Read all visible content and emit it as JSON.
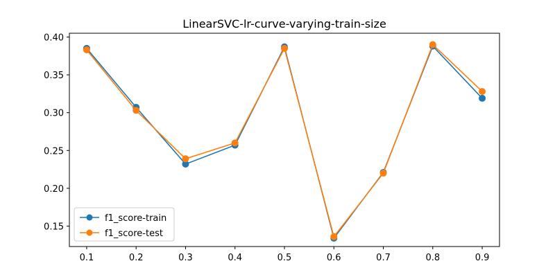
{
  "chart_data": {
    "type": "line",
    "title": "LinearSVC-lr-curve-varying-train-size",
    "xlabel": "",
    "ylabel": "",
    "x": [
      0.1,
      0.2,
      0.3,
      0.4,
      0.5,
      0.6,
      0.7,
      0.8,
      0.9
    ],
    "x_ticks": [
      "0.1",
      "0.2",
      "0.3",
      "0.4",
      "0.5",
      "0.6",
      "0.7",
      "0.8",
      "0.9"
    ],
    "y_ticks": [
      "0.15",
      "0.20",
      "0.25",
      "0.30",
      "0.35",
      "0.40"
    ],
    "xlim": [
      0.065,
      0.935
    ],
    "ylim": [
      0.123,
      0.405
    ],
    "grid": false,
    "legend_position": "lower-left",
    "series": [
      {
        "name": "f1_score-train",
        "color": "#1f77b4",
        "values": [
          0.385,
          0.307,
          0.232,
          0.257,
          0.387,
          0.134,
          0.221,
          0.388,
          0.319
        ]
      },
      {
        "name": "f1_score-test",
        "color": "#ff7f0e",
        "values": [
          0.383,
          0.303,
          0.239,
          0.26,
          0.385,
          0.136,
          0.22,
          0.39,
          0.328
        ]
      }
    ]
  }
}
